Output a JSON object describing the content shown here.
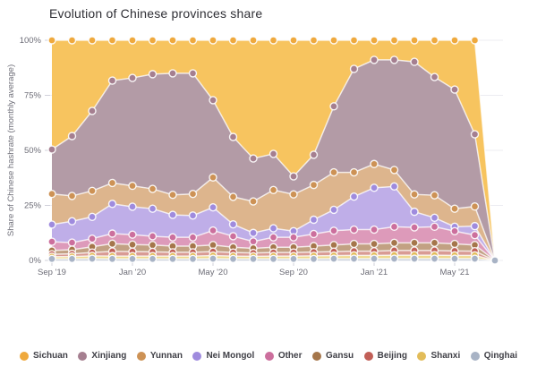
{
  "title": "Evolution of Chinese provinces share",
  "y_axis_label": "Share of Chinese hashrate (monthly average)",
  "chart_data": {
    "type": "area",
    "stacked": true,
    "title": "Evolution of Chinese provinces share",
    "ylabel": "Share of Chinese hashrate (monthly average)",
    "ylim": [
      0,
      100
    ],
    "grid": "horizontal",
    "legend_position": "bottom",
    "y_tick_values": [
      0,
      25,
      50,
      75,
      100
    ],
    "y_tick_labels": [
      "0%",
      "25%",
      "50%",
      "75%",
      "100%"
    ],
    "x": [
      "Sep '19",
      "Oct '19",
      "Nov '19",
      "Dec '19",
      "Jan '20",
      "Feb '20",
      "Mar '20",
      "Apr '20",
      "May '20",
      "Jun '20",
      "Jul '20",
      "Aug '20",
      "Sep '20",
      "Oct '20",
      "Nov '20",
      "Dec '20",
      "Jan '21",
      "Feb '21",
      "Mar '21",
      "Apr '21",
      "May '21",
      "Jun '21",
      "Jul '21"
    ],
    "x_tick_positions": [
      0,
      4,
      8,
      12,
      16,
      20
    ],
    "x_tick_labels": [
      "Sep '19",
      "Jan '20",
      "May '20",
      "Sep '20",
      "Jan '21",
      "May '21"
    ],
    "stack_order": "top-to-bottom",
    "series": [
      {
        "name": "Sichuan",
        "color": "#efa93d",
        "fill": "#f7c45f",
        "values": [
          49.6,
          43.5,
          32.1,
          18.3,
          17.1,
          15.4,
          15.0,
          15.0,
          27.2,
          43.9,
          53.7,
          51.6,
          61.8,
          52.0,
          30.0,
          13.0,
          8.9,
          8.9,
          9.8,
          16.7,
          22.4,
          42.7,
          0
        ]
      },
      {
        "name": "Xinjiang",
        "color": "#a57f90",
        "fill": "#b39ba6",
        "values": [
          20.2,
          27.2,
          36.3,
          46.5,
          49.0,
          52.1,
          55.2,
          54.8,
          35.1,
          27.2,
          19.5,
          16.4,
          8.2,
          13.7,
          30.0,
          47.0,
          47.3,
          50.0,
          60.2,
          53.7,
          54.1,
          32.8,
          0
        ]
      },
      {
        "name": "Yunnan",
        "color": "#cd9255",
        "fill": "#ddb58d",
        "values": [
          13.9,
          11.5,
          11.8,
          9.5,
          9.5,
          9.0,
          9.1,
          9.8,
          13.6,
          12.5,
          14.3,
          17.4,
          16.7,
          15.8,
          17.0,
          11.0,
          10.8,
          7.5,
          7.9,
          10.2,
          8.2,
          8.9,
          0
        ]
      },
      {
        "name": "Nei Mongol",
        "color": "#9f8bde",
        "fill": "#bfaee8",
        "values": [
          7.8,
          9.7,
          9.9,
          13.5,
          12.7,
          12.5,
          10.2,
          9.9,
          10.5,
          5.4,
          3.9,
          4.1,
          2.8,
          6.5,
          9.5,
          15.0,
          19.0,
          18.3,
          7.1,
          4.1,
          2.0,
          4.1,
          0
        ]
      },
      {
        "name": "Other",
        "color": "#cc6f9d",
        "fill": "#dd9aba",
        "values": [
          4.0,
          3.2,
          3.7,
          4.6,
          4.5,
          4.0,
          4.0,
          4.0,
          6.6,
          5.0,
          3.1,
          4.5,
          4.5,
          5.5,
          6.5,
          6.5,
          6.5,
          7.3,
          7.0,
          7.3,
          5.8,
          4.5,
          0
        ]
      },
      {
        "name": "Gansu",
        "color": "#a5764b",
        "fill": "#c2a183",
        "values": [
          1.7,
          1.9,
          2.6,
          3.5,
          3.2,
          3.1,
          2.8,
          2.8,
          3.0,
          2.4,
          2.1,
          2.4,
          2.4,
          2.7,
          3.0,
          3.3,
          3.3,
          3.5,
          3.5,
          3.5,
          3.2,
          2.8,
          0
        ]
      },
      {
        "name": "Beijing",
        "color": "#c15f57",
        "fill": "#d99b94",
        "values": [
          1.1,
          1.2,
          1.5,
          2.1,
          2.0,
          1.9,
          1.7,
          1.7,
          1.8,
          1.6,
          1.5,
          1.6,
          1.6,
          1.7,
          1.8,
          1.9,
          1.9,
          2.1,
          2.1,
          2.1,
          2.0,
          1.9,
          0
        ]
      },
      {
        "name": "Shanxi",
        "color": "#e2bc59",
        "fill": "#efd98f",
        "values": [
          1.0,
          1.1,
          1.3,
          1.3,
          1.3,
          1.3,
          1.3,
          1.3,
          1.4,
          1.3,
          1.2,
          1.3,
          1.3,
          1.4,
          1.4,
          1.5,
          1.5,
          1.6,
          1.6,
          1.6,
          1.5,
          1.5,
          0
        ]
      },
      {
        "name": "Qinghai",
        "color": "#a8b3c5",
        "fill": "#cbd2dc",
        "values": [
          0.7,
          0.7,
          0.8,
          0.7,
          0.7,
          0.7,
          0.7,
          0.7,
          0.8,
          0.7,
          0.7,
          0.7,
          0.7,
          0.7,
          0.8,
          0.8,
          0.8,
          0.8,
          0.8,
          0.8,
          0.8,
          0.8,
          0
        ]
      }
    ],
    "colors": {
      "grid": "#ececf1",
      "tick": "#d0d0da",
      "tick_label": "#6d6d77",
      "edge_stroke": "#ffffff"
    }
  }
}
